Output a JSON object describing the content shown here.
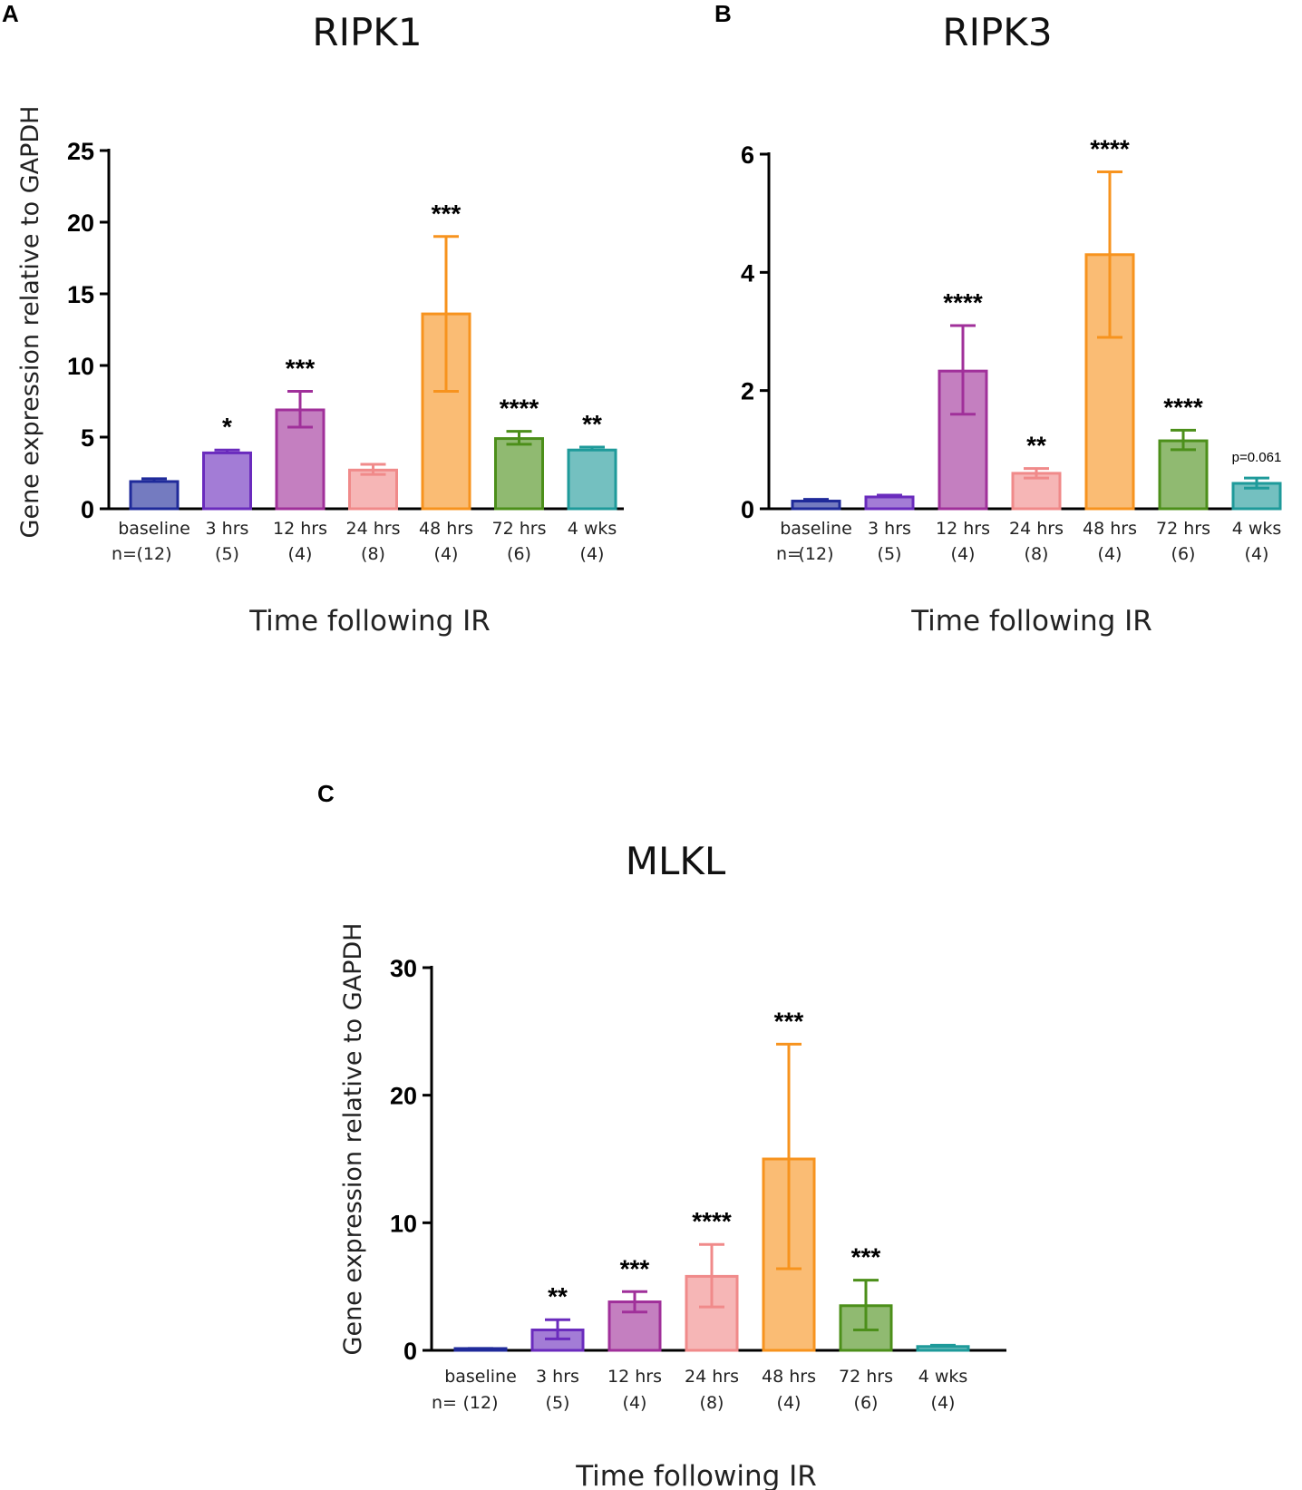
{
  "colors": {
    "baseline": "#1f2a9a",
    "3hrs": "#6a2bbd",
    "12hrs": "#a0309a",
    "24hrs": "#f08a8a",
    "48hrs": "#f7931e",
    "72hrs": "#4c8f1a",
    "4wks": "#1e9a9a"
  },
  "chart_data": [
    {
      "panel": "A",
      "type": "bar",
      "title": "RIPK1",
      "ylabel": "Gene expression relative to GAPDH",
      "xlabel": "Time following IR",
      "ylim": [
        0,
        25
      ],
      "yticks": [
        0,
        5,
        10,
        15,
        20,
        25
      ],
      "n_prefix": "n=",
      "categories": [
        "baseline",
        "3 hrs",
        "12 hrs",
        "24 hrs",
        "48 hrs",
        "72 hrs",
        "4 wks"
      ],
      "n_labels": [
        "(12)",
        "(5)",
        "(4)",
        "(8)",
        "(4)",
        "(6)",
        "(4)"
      ],
      "values": [
        1.9,
        3.9,
        6.9,
        2.7,
        13.6,
        4.9,
        4.1
      ],
      "error_upper": [
        2.1,
        4.1,
        8.2,
        3.1,
        19.0,
        5.4,
        4.3
      ],
      "error_lower": [
        null,
        null,
        5.7,
        2.4,
        8.2,
        4.5,
        null
      ],
      "significance": [
        "",
        "*",
        "***",
        "",
        "***",
        "****",
        "**"
      ]
    },
    {
      "panel": "B",
      "type": "bar",
      "title": "RIPK3",
      "ylabel": "",
      "xlabel": "Time following IR",
      "ylim": [
        0,
        6
      ],
      "yticks": [
        0,
        2,
        4,
        6
      ],
      "n_prefix": "n=",
      "categories": [
        "baseline",
        "3 hrs",
        "12 hrs",
        "24 hrs",
        "48 hrs",
        "72 hrs",
        "4 wks"
      ],
      "n_labels": [
        "(12)",
        "(5)",
        "(4)",
        "(8)",
        "(4)",
        "(6)",
        "(4)"
      ],
      "values": [
        0.13,
        0.2,
        2.33,
        0.6,
        4.3,
        1.15,
        0.43
      ],
      "error_upper": [
        0.16,
        0.23,
        3.1,
        0.68,
        5.7,
        1.33,
        0.52
      ],
      "error_lower": [
        null,
        null,
        1.6,
        0.52,
        2.9,
        1.0,
        0.35
      ],
      "significance": [
        "",
        "",
        "****",
        "**",
        "****",
        "****",
        "p=0.061"
      ]
    },
    {
      "panel": "C",
      "type": "bar",
      "title": "MLKL",
      "ylabel": "Gene expression relative to GAPDH",
      "xlabel": "Time following IR",
      "ylim": [
        0,
        30
      ],
      "yticks": [
        0,
        10,
        20,
        30
      ],
      "n_prefix": "n=",
      "categories": [
        "baseline",
        "3 hrs",
        "12 hrs",
        "24 hrs",
        "48 hrs",
        "72 hrs",
        "4 wks"
      ],
      "n_labels": [
        "(12)",
        "(5)",
        "(4)",
        "(8)",
        "(4)",
        "(6)",
        "(4)"
      ],
      "values": [
        0.1,
        1.6,
        3.8,
        5.8,
        15.0,
        3.5,
        0.3
      ],
      "error_upper": [
        0.15,
        2.4,
        4.6,
        8.3,
        24.0,
        5.5,
        0.4
      ],
      "error_lower": [
        null,
        0.9,
        3.0,
        3.4,
        6.4,
        1.6,
        null
      ],
      "significance": [
        "",
        "**",
        "***",
        "****",
        "***",
        "***",
        ""
      ]
    }
  ]
}
